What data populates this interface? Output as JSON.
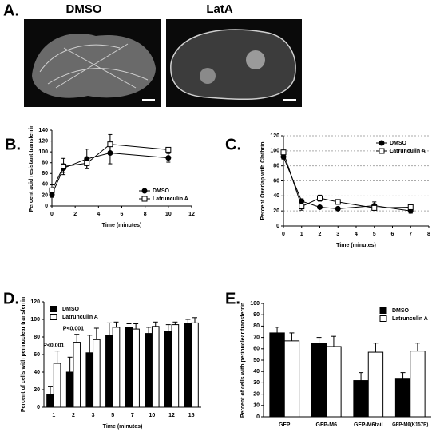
{
  "panel_a": {
    "label": "A.",
    "images": [
      {
        "title": "DMSO"
      },
      {
        "title": "LatA"
      }
    ]
  },
  "chart_data": [
    {
      "type": "line",
      "panel_label": "B.",
      "xlabel": "Time (minutes)",
      "ylabel": "Percent acid resistant transferrin",
      "x": [
        0,
        1,
        3,
        5,
        10
      ],
      "xlim": [
        0,
        12
      ],
      "xticks": [
        0,
        2,
        4,
        6,
        8,
        10,
        12
      ],
      "ylim": [
        0,
        140
      ],
      "yticks": [
        0,
        20,
        40,
        60,
        80,
        100,
        120,
        140
      ],
      "grid": false,
      "legend": "lower right",
      "series": [
        {
          "name": "DMSO",
          "color": "#000000",
          "marker": "circle",
          "values": [
            21,
            70,
            87,
            98,
            89
          ],
          "errors": [
            5,
            8,
            18,
            20,
            8
          ]
        },
        {
          "name": "Latrunculin A",
          "color": "#ffffff",
          "marker": "square",
          "values": [
            29,
            73,
            79,
            114,
            104
          ],
          "errors": [
            10,
            15,
            10,
            18,
            4
          ]
        }
      ]
    },
    {
      "type": "line",
      "panel_label": "C.",
      "xlabel": "Time (minutes)",
      "ylabel": "Percent Overlap with Clathrin",
      "x": [
        0,
        1,
        2,
        3,
        5,
        7
      ],
      "xlim": [
        0,
        8
      ],
      "xticks": [
        0,
        1,
        2,
        3,
        4,
        5,
        6,
        7,
        8
      ],
      "ylim": [
        0,
        120
      ],
      "yticks": [
        0,
        20,
        40,
        60,
        80,
        100,
        120
      ],
      "grid": true,
      "legend": "upper right",
      "series": [
        {
          "name": "DMSO",
          "color": "#000000",
          "marker": "circle",
          "values": [
            92,
            33,
            25,
            23,
            27,
            20
          ],
          "errors": [
            3,
            3,
            2,
            2,
            5,
            3
          ]
        },
        {
          "name": "Latrunculin A",
          "color": "#ffffff",
          "marker": "square",
          "values": [
            98,
            26,
            37,
            32,
            24,
            25
          ],
          "errors": [
            3,
            5,
            4,
            3,
            3,
            3
          ]
        }
      ]
    },
    {
      "type": "bar",
      "panel_label": "D.",
      "xlabel": "Time (minutes)",
      "ylabel": "Percent of cells with perinuclear transferrin",
      "categories": [
        "1",
        "2",
        "3",
        "5",
        "7",
        "10",
        "12",
        "15"
      ],
      "ylim": [
        0,
        120
      ],
      "yticks": [
        0,
        20,
        40,
        60,
        80,
        100,
        120
      ],
      "grid": false,
      "legend": "upper left",
      "annotations": [
        {
          "text": "P<0.001",
          "category": "1"
        },
        {
          "text": "P<0.001",
          "category": "2"
        }
      ],
      "series": [
        {
          "name": "DMSO",
          "color": "#000000",
          "values": [
            15,
            40,
            62,
            82,
            91,
            84,
            86,
            95
          ],
          "errors": [
            9,
            17,
            20,
            14,
            4,
            7,
            8,
            5
          ]
        },
        {
          "name": "Latrunculin A",
          "color": "#ffffff",
          "values": [
            50,
            74,
            77,
            91,
            89,
            92,
            94,
            96
          ],
          "errors": [
            14,
            9,
            13,
            6,
            6,
            5,
            3,
            6
          ]
        }
      ]
    },
    {
      "type": "bar",
      "panel_label": "E.",
      "ylabel": "Percent of cells with perinuclear transferrin",
      "categories": [
        "GFP",
        "GFP-M6",
        "GFP-M6tail",
        "GFP-M6(K157R)"
      ],
      "ylim": [
        0,
        100
      ],
      "yticks": [
        0,
        10,
        20,
        30,
        40,
        50,
        60,
        70,
        80,
        90,
        100
      ],
      "grid": false,
      "legend": "upper right",
      "series": [
        {
          "name": "DMSO",
          "color": "#000000",
          "values": [
            74,
            65,
            32,
            34
          ],
          "errors": [
            5,
            5,
            7,
            5
          ]
        },
        {
          "name": "Latrunculin A",
          "color": "#ffffff",
          "values": [
            67,
            62,
            57,
            58
          ],
          "errors": [
            7,
            9,
            8,
            7
          ]
        }
      ]
    }
  ]
}
